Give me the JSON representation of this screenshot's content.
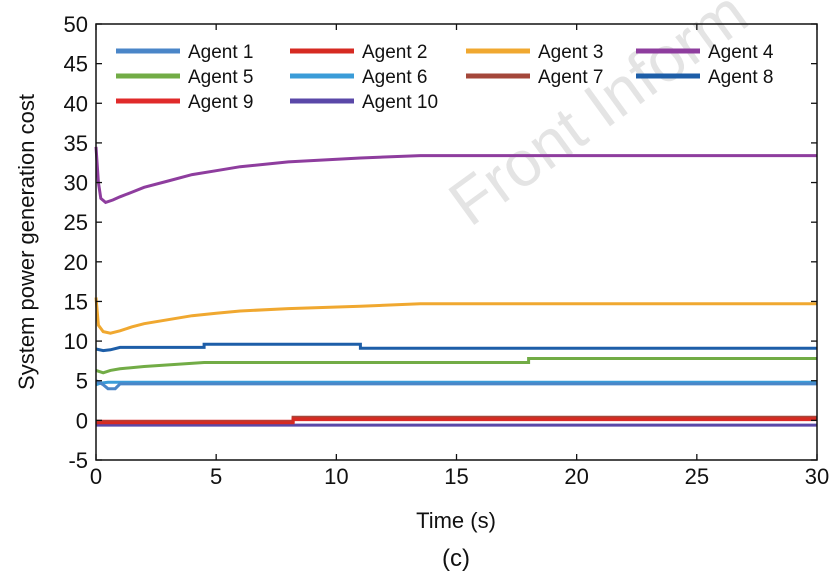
{
  "chart_data": {
    "type": "line",
    "xlabel": "Time (s)",
    "ylabel": "System power generation cost",
    "xlim": [
      0,
      30
    ],
    "ylim": [
      -5,
      50
    ],
    "xticks": [
      "0",
      "5",
      "10",
      "15",
      "20",
      "25",
      "30"
    ],
    "yticks": [
      "-5",
      "0",
      "5",
      "10",
      "15",
      "20",
      "25",
      "30",
      "35",
      "40",
      "45",
      "50"
    ],
    "grid": false,
    "legend_position": "top",
    "caption": "(c)",
    "watermark": "Front Inform",
    "series": [
      {
        "name": "Agent 1",
        "color": "#4a86c8",
        "x": [
          0,
          0.3,
          0.5,
          0.8,
          1.0,
          30
        ],
        "y": [
          5,
          4.5,
          4.0,
          4.0,
          4.6,
          4.6
        ]
      },
      {
        "name": "Agent 2",
        "color": "#d62a22",
        "x": [
          0,
          8.2,
          8.2,
          30
        ],
        "y": [
          -0.3,
          -0.3,
          0.2,
          0.2
        ]
      },
      {
        "name": "Agent 3",
        "color": "#f0a830",
        "x": [
          0,
          0.1,
          0.3,
          0.6,
          1.0,
          1.5,
          2.0,
          3.0,
          4.0,
          5.0,
          6.0,
          8.0,
          11.0,
          13.5,
          30
        ],
        "y": [
          15.5,
          12.0,
          11.2,
          11.0,
          11.3,
          11.8,
          12.2,
          12.7,
          13.2,
          13.5,
          13.8,
          14.1,
          14.4,
          14.7,
          14.7
        ]
      },
      {
        "name": "Agent 4",
        "color": "#8e3d9e",
        "x": [
          0,
          0.1,
          0.2,
          0.4,
          0.7,
          1.0,
          1.5,
          2.0,
          3.0,
          4.0,
          5.0,
          6.0,
          8.0,
          11.0,
          13.5,
          30
        ],
        "y": [
          34.5,
          30.0,
          28.0,
          27.5,
          27.8,
          28.2,
          28.8,
          29.4,
          30.2,
          31.0,
          31.5,
          32.0,
          32.6,
          33.1,
          33.4,
          33.4
        ]
      },
      {
        "name": "Agent 5",
        "color": "#72ac46",
        "x": [
          0,
          0.3,
          0.6,
          1.0,
          2.0,
          4.5,
          18.0,
          18.0,
          30
        ],
        "y": [
          6.3,
          6.0,
          6.3,
          6.5,
          6.8,
          7.3,
          7.3,
          7.8,
          7.8
        ]
      },
      {
        "name": "Agent 6",
        "color": "#3a9cd8",
        "x": [
          0,
          0.2,
          0.5,
          30
        ],
        "y": [
          4.5,
          4.7,
          4.8,
          4.8
        ]
      },
      {
        "name": "Agent 7",
        "color": "#a4473a",
        "x": [
          0,
          8.2,
          8.2,
          30
        ],
        "y": [
          -0.2,
          -0.2,
          0.4,
          0.4
        ]
      },
      {
        "name": "Agent 8",
        "color": "#1d5ea8",
        "x": [
          0,
          0.3,
          0.6,
          1.0,
          4.5,
          4.5,
          11.0,
          11.0,
          30
        ],
        "y": [
          9.0,
          8.8,
          8.9,
          9.2,
          9.2,
          9.6,
          9.6,
          9.1,
          9.1
        ]
      },
      {
        "name": "Agent 9",
        "color": "#e02a2a",
        "x": [
          0,
          8.2,
          8.2,
          30
        ],
        "y": [
          -0.1,
          -0.1,
          0.1,
          0.1
        ]
      },
      {
        "name": "Agent 10",
        "color": "#5a48a8",
        "x": [
          0,
          30
        ],
        "y": [
          -0.6,
          -0.6
        ]
      }
    ]
  }
}
